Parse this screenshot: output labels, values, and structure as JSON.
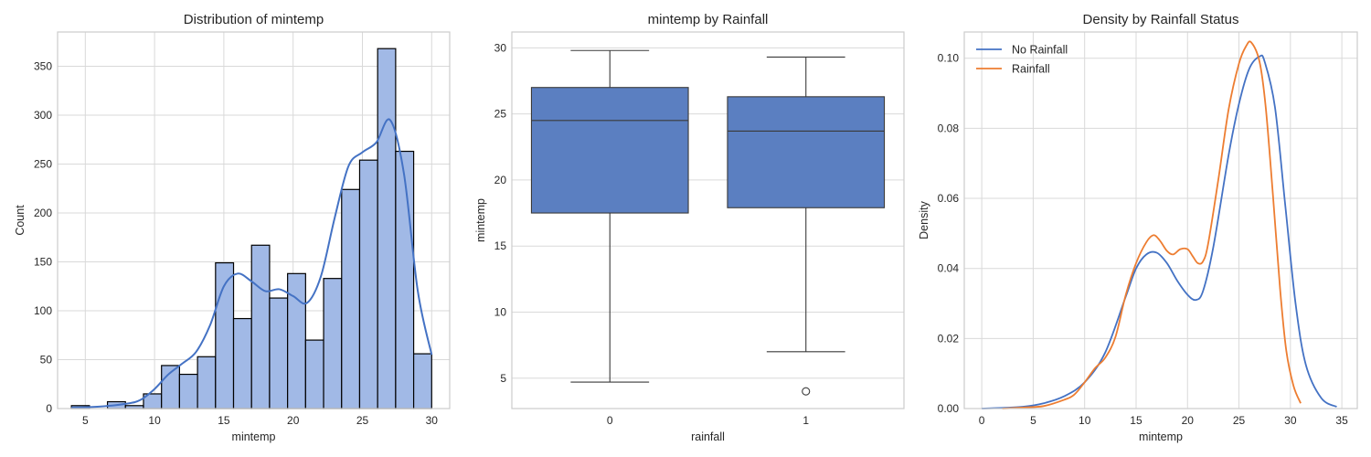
{
  "chart_data": [
    {
      "type": "histogram",
      "title": "Distribution of mintemp",
      "xlabel": "mintemp",
      "ylabel": "Count",
      "xlim": [
        3,
        31.3
      ],
      "ylim": [
        0,
        385
      ],
      "xticks": [
        5,
        10,
        15,
        20,
        25,
        30
      ],
      "yticks": [
        0,
        50,
        100,
        150,
        200,
        250,
        300,
        350
      ],
      "bar_color": "#a1b9e6",
      "edge_color": "#000000",
      "kde_color": "#4472c4",
      "bins": [
        {
          "x0": 4.0,
          "x1": 5.3,
          "count": 3
        },
        {
          "x0": 5.3,
          "x1": 6.6,
          "count": 0
        },
        {
          "x0": 6.6,
          "x1": 7.9,
          "count": 7
        },
        {
          "x0": 7.9,
          "x1": 9.2,
          "count": 3
        },
        {
          "x0": 9.2,
          "x1": 10.5,
          "count": 15
        },
        {
          "x0": 10.5,
          "x1": 11.8,
          "count": 44
        },
        {
          "x0": 11.8,
          "x1": 13.1,
          "count": 35
        },
        {
          "x0": 13.1,
          "x1": 14.4,
          "count": 53
        },
        {
          "x0": 14.4,
          "x1": 15.7,
          "count": 149
        },
        {
          "x0": 15.7,
          "x1": 17.0,
          "count": 92
        },
        {
          "x0": 17.0,
          "x1": 18.3,
          "count": 167
        },
        {
          "x0": 18.3,
          "x1": 19.6,
          "count": 113
        },
        {
          "x0": 19.6,
          "x1": 20.9,
          "count": 138
        },
        {
          "x0": 20.9,
          "x1": 22.2,
          "count": 70
        },
        {
          "x0": 22.2,
          "x1": 23.5,
          "count": 133
        },
        {
          "x0": 23.5,
          "x1": 24.8,
          "count": 224
        },
        {
          "x0": 24.8,
          "x1": 26.1,
          "count": 254
        },
        {
          "x0": 26.1,
          "x1": 27.4,
          "count": 368
        },
        {
          "x0": 27.4,
          "x1": 28.7,
          "count": 263
        },
        {
          "x0": 28.7,
          "x1": 30.0,
          "count": 56
        }
      ],
      "kde": {
        "x": [
          4,
          6,
          8,
          9,
          10,
          11,
          12,
          13,
          14,
          15,
          16,
          17,
          18,
          19,
          20,
          21,
          22,
          23,
          24,
          25,
          26,
          27,
          28,
          29,
          30
        ],
        "y": [
          1,
          2,
          5,
          9,
          20,
          35,
          46,
          58,
          85,
          125,
          138,
          130,
          120,
          122,
          115,
          108,
          135,
          195,
          248,
          262,
          272,
          295,
          240,
          120,
          55
        ]
      }
    },
    {
      "type": "boxplot",
      "title": "mintemp by Rainfall",
      "xlabel": "rainfall",
      "ylabel": "mintemp",
      "categories": [
        "0",
        "1"
      ],
      "ylim": [
        2.7,
        31.2
      ],
      "yticks": [
        5,
        10,
        15,
        20,
        25,
        30
      ],
      "box_color": "#5b7fc1",
      "line_color": "#3a3a3a",
      "boxes": [
        {
          "label": "0",
          "whislo": 4.7,
          "q1": 17.5,
          "med": 24.5,
          "q3": 27.0,
          "whishi": 29.8,
          "fliers": []
        },
        {
          "label": "1",
          "whislo": 7.0,
          "q1": 17.9,
          "med": 23.7,
          "q3": 26.3,
          "whishi": 29.3,
          "fliers": [
            4.0
          ]
        }
      ]
    },
    {
      "type": "line",
      "title": "Density by Rainfall Status",
      "xlabel": "mintemp",
      "ylabel": "Density",
      "xlim": [
        -1.7,
        36.5
      ],
      "ylim": [
        0,
        0.1075
      ],
      "xticks": [
        0,
        5,
        10,
        15,
        20,
        25,
        30,
        35
      ],
      "yticks": [
        0.0,
        0.02,
        0.04,
        0.06,
        0.08,
        0.1
      ],
      "legend_position": "top-left",
      "series": [
        {
          "name": "No Rainfall",
          "color": "#4472c4",
          "x": [
            0,
            2,
            4,
            6,
            8,
            10,
            12,
            14,
            15,
            16,
            17,
            18,
            19,
            20,
            20.8,
            21.5,
            22.5,
            24,
            25,
            26,
            27,
            27.5,
            28.5,
            29.5,
            30.5,
            31.5,
            33,
            34.5
          ],
          "y": [
            0.0,
            0.0002,
            0.0005,
            0.0015,
            0.0035,
            0.0075,
            0.016,
            0.032,
            0.04,
            0.044,
            0.0445,
            0.0415,
            0.0365,
            0.0325,
            0.031,
            0.0335,
            0.046,
            0.0725,
            0.087,
            0.097,
            0.1005,
            0.099,
            0.086,
            0.058,
            0.03,
            0.0125,
            0.003,
            0.0005
          ]
        },
        {
          "name": "Rainfall",
          "color": "#ed7d31",
          "x": [
            2,
            4,
            6,
            8,
            9,
            10,
            11,
            12,
            13,
            14,
            15,
            16,
            16.7,
            17.3,
            18,
            18.6,
            19.3,
            20,
            20.5,
            21,
            21.5,
            22,
            23,
            24,
            25,
            25.7,
            26.2,
            27,
            27.6,
            28.3,
            29,
            29.6,
            30.3,
            31
          ],
          "y": [
            0.0,
            0.0003,
            0.0007,
            0.0025,
            0.004,
            0.0075,
            0.0115,
            0.0145,
            0.0205,
            0.0325,
            0.0415,
            0.0475,
            0.0495,
            0.048,
            0.045,
            0.044,
            0.0455,
            0.0455,
            0.0435,
            0.0415,
            0.042,
            0.047,
            0.0655,
            0.0855,
            0.0985,
            0.1035,
            0.1045,
            0.099,
            0.086,
            0.061,
            0.034,
            0.0165,
            0.0065,
            0.0015
          ]
        }
      ]
    }
  ]
}
